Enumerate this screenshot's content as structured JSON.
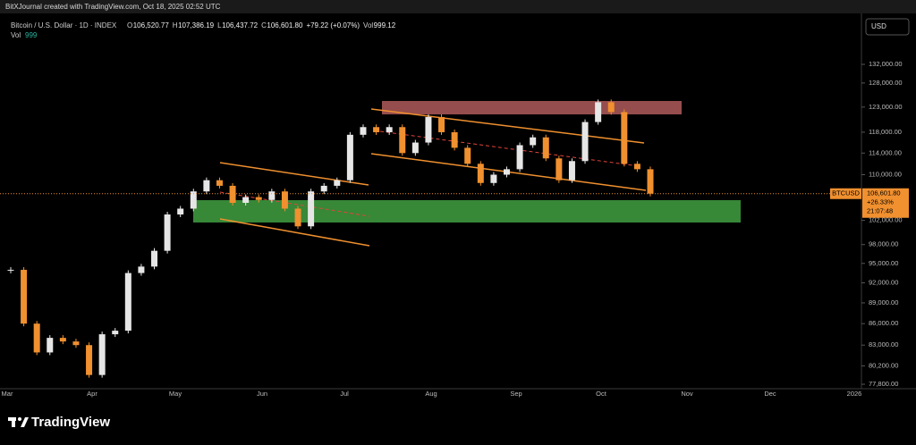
{
  "header": {
    "credit": "BitXJournal created with TradingView.com, Oct 18, 2025 02:52 UTC"
  },
  "footer": {
    "logo": "TradingView"
  },
  "chart_data": {
    "type": "candlestick",
    "title": "Bitcoin / U.S. Dollar · 1D · INDEX",
    "quote": [
      {
        "key": "O",
        "value": "106,520.77"
      },
      {
        "key": "H",
        "value": "107,386.19"
      },
      {
        "key": "L",
        "value": "106,437.72"
      },
      {
        "key": "C",
        "value": "106,601.80"
      },
      {
        "key": "",
        "value": "+79.22 (+0.07%)"
      },
      {
        "key": "Vol",
        "value": "999.12"
      }
    ],
    "volume_legend": {
      "key": "Vol",
      "value": "999"
    },
    "currency": "USD",
    "log_scale": true,
    "up_color": "#e6e6e6",
    "down_color": "#f0902f",
    "close": [
      94000,
      86000,
      82000,
      84000,
      83500,
      83000,
      79000,
      84500,
      85000,
      93500,
      94500,
      97000,
      103000,
      104000,
      107000,
      109000,
      108000,
      105000,
      106000,
      105500,
      107000,
      104000,
      101000,
      107000,
      108000,
      109000,
      117500,
      119000,
      118000,
      119000,
      114000,
      116000,
      121000,
      118000,
      115000,
      112000,
      108500,
      110000,
      111000,
      115500,
      117000,
      113000,
      109000,
      112500,
      120000,
      124000,
      122000,
      112000,
      111000,
      106601.8
    ],
    "ylim": [
      77230,
      143600
    ],
    "yticks": [
      {
        "value": 77800,
        "label": "77,800.00"
      },
      {
        "value": 80200,
        "label": "80,200.00"
      },
      {
        "value": 83000,
        "label": "83,000.00"
      },
      {
        "value": 86000,
        "label": "86,000.00"
      },
      {
        "value": 89000,
        "label": "89,000.00"
      },
      {
        "value": 92000,
        "label": "92,000.00"
      },
      {
        "value": 95000,
        "label": "95,000.00"
      },
      {
        "value": 98000,
        "label": "98,000.00"
      },
      {
        "value": 102000,
        "label": "102,000.00"
      },
      {
        "value": 110000,
        "label": "110,000.00"
      },
      {
        "value": 114000,
        "label": "114,000.00"
      },
      {
        "value": 118000,
        "label": "118,000.00"
      },
      {
        "value": 123000,
        "label": "123,000.00"
      },
      {
        "value": 128000,
        "label": "128,000.00"
      },
      {
        "value": 132000,
        "label": "132,000.00"
      }
    ],
    "xticks": [
      "Mar",
      "Apr",
      "May",
      "Jun",
      "Jul",
      "Aug",
      "Sep",
      "Oct",
      "Nov",
      "Dec",
      "2026"
    ],
    "last_price": {
      "symbol": "BTCUSD",
      "value": 106601.8,
      "label": "106,601.80",
      "change": "+26.33%",
      "countdown": "21:07:48"
    }
  }
}
